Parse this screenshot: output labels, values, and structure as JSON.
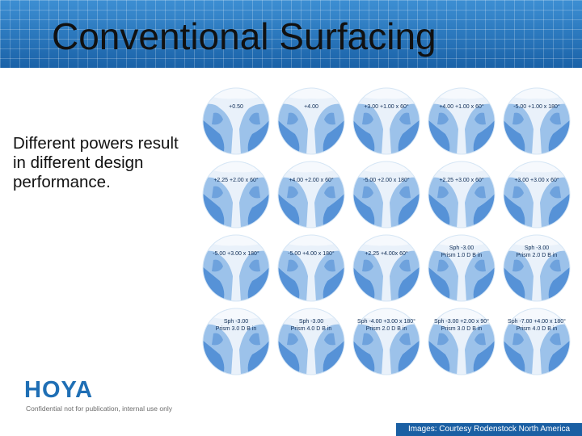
{
  "slide": {
    "title": "Conventional Surfacing",
    "subtitle": "Different powers result in different design performance.",
    "brand": "HOYA",
    "confidential": "Confidential not for publication, internal use only",
    "credit": "Images: Courtesy Rodenstock North America"
  },
  "colors": {
    "header": "#1f6fb5",
    "lens_light": "#e9f1fa",
    "lens_mid": "#9cc2ea",
    "lens_dark": "#3f82d0",
    "brand": "#1f6fb5"
  },
  "lenses": [
    {
      "line1": "+0.50",
      "line2": ""
    },
    {
      "line1": "+4.00",
      "line2": ""
    },
    {
      "line1": "+3.00 +1.00 x 60°",
      "line2": ""
    },
    {
      "line1": "+4.00 +1.00 x 60°",
      "line2": ""
    },
    {
      "line1": "-5.00 +1.00 x 180°",
      "line2": ""
    },
    {
      "line1": "+2.25 +2.00 x 60°",
      "line2": ""
    },
    {
      "line1": "+4.00 +2.00 x 60°",
      "line2": ""
    },
    {
      "line1": "-5.00 +2.00 x 180°",
      "line2": ""
    },
    {
      "line1": "+2.25 +3.00 x 60°",
      "line2": ""
    },
    {
      "line1": "+3.00 +3.00 x 60°",
      "line2": ""
    },
    {
      "line1": "-5.00 +3.00 x 180°",
      "line2": ""
    },
    {
      "line1": "-5.00 +4.00 x 180°",
      "line2": ""
    },
    {
      "line1": "+2.25 +4.00x 60°",
      "line2": ""
    },
    {
      "line1": "Sph -3.00",
      "line2": "Prism 1.0 D B in"
    },
    {
      "line1": "Sph -3.00",
      "line2": "Prism 2.0 D B in"
    },
    {
      "line1": "Sph -3.00",
      "line2": "Prism 3.0 D B in"
    },
    {
      "line1": "Sph -3.00",
      "line2": "Prism 4.0 D B in"
    },
    {
      "line1": "Sph -4.00 +3.00 x 180°",
      "line2": "Prism 2.0 D B in"
    },
    {
      "line1": "Sph -3.00 +2.00 x 90°",
      "line2": "Prism 3.0 D B in"
    },
    {
      "line1": "Sph -7.00 +4.00 x 180°",
      "line2": "Prism 4.0 D B in"
    }
  ]
}
